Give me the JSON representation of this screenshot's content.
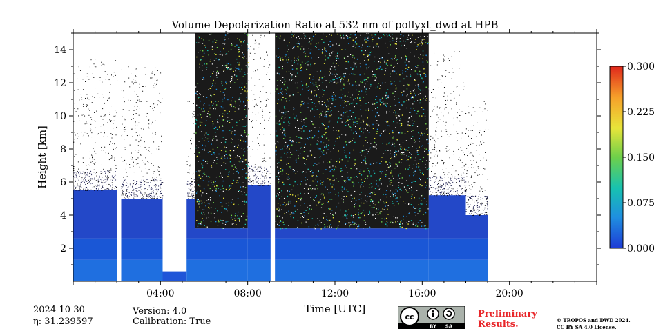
{
  "chart_data": {
    "type": "heatmap",
    "title": "Volume Depolarization Ratio at 532 nm of pollyxt_dwd at HPB",
    "xlabel": "Time [UTC]",
    "ylabel": "Height [km]",
    "xlim_hours": [
      0,
      24
    ],
    "ylim": [
      0,
      15
    ],
    "x_ticks": [
      "04:00",
      "08:00",
      "12:00",
      "16:00",
      "20:00"
    ],
    "x_tick_hours": [
      4,
      8,
      12,
      16,
      20
    ],
    "y_ticks": [
      2,
      4,
      6,
      8,
      10,
      12,
      14
    ],
    "colorbar": {
      "min": 0.0,
      "max": 0.3,
      "ticks": [
        "0.000",
        "0.075",
        "0.150",
        "0.225",
        "0.300"
      ],
      "tick_values": [
        0.0,
        0.075,
        0.15,
        0.225,
        0.3
      ],
      "colormap": [
        "#1e3bd6",
        "#1f8fe0",
        "#17c2b0",
        "#6ed04a",
        "#e8e53a",
        "#f6a02a",
        "#e0271c"
      ]
    },
    "segments": [
      {
        "start_h": 0.0,
        "end_h": 2.0,
        "kind": "aerosol",
        "top_km": 5.5,
        "noise_top_km": 13.5
      },
      {
        "start_h": 2.0,
        "end_h": 2.2,
        "kind": "gap"
      },
      {
        "start_h": 2.2,
        "end_h": 4.1,
        "kind": "aerosol",
        "top_km": 5.0,
        "noise_top_km": 13.0
      },
      {
        "start_h": 4.1,
        "end_h": 5.2,
        "kind": "low-cloud",
        "top_km": 0.6
      },
      {
        "start_h": 5.2,
        "end_h": 5.6,
        "kind": "aerosol",
        "top_km": 5.0,
        "noise_top_km": 11.0
      },
      {
        "start_h": 5.6,
        "end_h": 8.0,
        "kind": "depolarizing-layer",
        "top_km": 15.0
      },
      {
        "start_h": 8.0,
        "end_h": 9.05,
        "kind": "aerosol",
        "top_km": 5.8,
        "noise_top_km": 15.0
      },
      {
        "start_h": 9.05,
        "end_h": 9.25,
        "kind": "gap"
      },
      {
        "start_h": 9.25,
        "end_h": 16.3,
        "kind": "depolarizing-layer",
        "top_km": 15.0
      },
      {
        "start_h": 16.3,
        "end_h": 18.0,
        "kind": "aerosol",
        "top_km": 5.2,
        "noise_top_km": 14.0
      },
      {
        "start_h": 18.0,
        "end_h": 19.0,
        "kind": "aerosol-fading",
        "top_km": 4.0,
        "noise_top_km": 11.0
      },
      {
        "start_h": 19.0,
        "end_h": 24.0,
        "kind": "no-data"
      }
    ]
  },
  "footer": {
    "date": "2024-10-30",
    "eta": "η: 31.239597",
    "version": "Version: 4.0",
    "calibration": "Calibration: True",
    "preliminary_line1": "Preliminary",
    "preliminary_line2": "Results.",
    "copyright_line1": "© TROPOS and DWD 2024.",
    "copyright_line2": "CC BY SA 4.0 License.",
    "license_badge": {
      "label1": "BY",
      "label2": "SA",
      "icon": "cc-by-sa-icon"
    }
  }
}
